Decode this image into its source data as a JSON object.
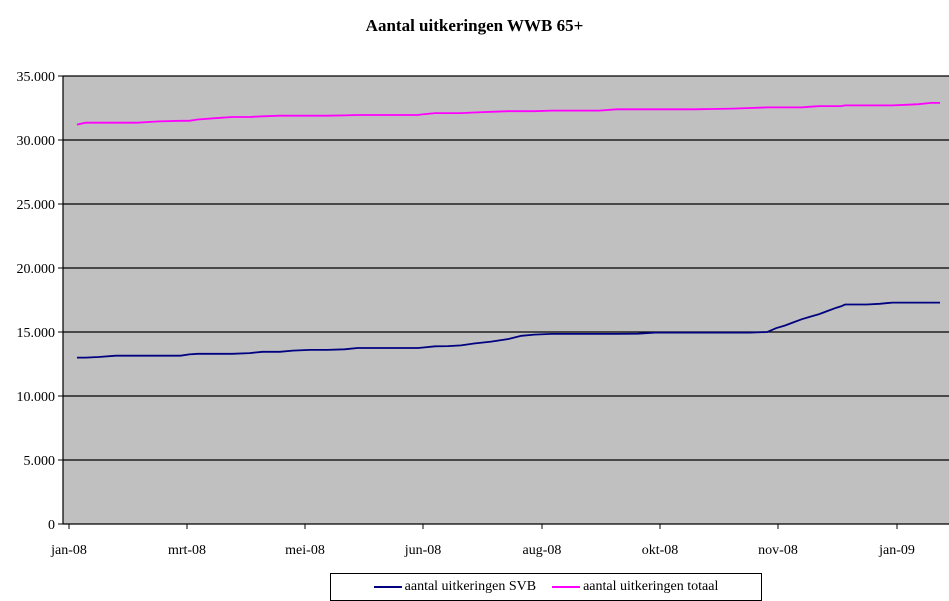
{
  "chart_data": {
    "type": "line",
    "title": "Aantal uitkeringen WWB 65+",
    "xlabel": "",
    "ylabel": "",
    "ylim": [
      0,
      35000
    ],
    "y_ticks": [
      "0",
      "5.000",
      "10.000",
      "15.000",
      "20.000",
      "25.000",
      "30.000",
      "35.000"
    ],
    "y_tick_values": [
      0,
      5000,
      10000,
      15000,
      20000,
      25000,
      30000,
      35000
    ],
    "x_tick_labels": [
      "jan-08",
      "mrt-08",
      "mei-08",
      "jun-08",
      "aug-08",
      "okt-08",
      "nov-08",
      "jan-09"
    ],
    "x": [
      0,
      2,
      5,
      9,
      14,
      19,
      24,
      26,
      28,
      32,
      36,
      40,
      43,
      47,
      50,
      54,
      58,
      62,
      65,
      69,
      72,
      76,
      79,
      80,
      83,
      86,
      89,
      92,
      96,
      100,
      103,
      106,
      110,
      113,
      117,
      121,
      125,
      130,
      134,
      138,
      143,
      147,
      152,
      156,
      160,
      162,
      164,
      166,
      168,
      170,
      172,
      174,
      176,
      177,
      178,
      179,
      180,
      183,
      186,
      189,
      192,
      195,
      198,
      200
    ],
    "series": [
      {
        "name": "aantal uitkeringen SVB",
        "color": "#000080",
        "values": [
          13000,
          13000,
          13050,
          13150,
          13150,
          13150,
          13150,
          13250,
          13300,
          13300,
          13300,
          13350,
          13450,
          13450,
          13550,
          13600,
          13600,
          13650,
          13750,
          13750,
          13750,
          13750,
          13750,
          13780,
          13880,
          13900,
          13950,
          14100,
          14250,
          14450,
          14700,
          14800,
          14850,
          14850,
          14850,
          14850,
          14850,
          14870,
          14950,
          14950,
          14950,
          14950,
          14950,
          14950,
          15000,
          15300,
          15500,
          15750,
          16000,
          16200,
          16400,
          16650,
          16900,
          17000,
          17150,
          17150,
          17150,
          17150,
          17200,
          17300,
          17300,
          17300,
          17300,
          17300
        ]
      },
      {
        "name": "aantal uitkeringen totaal",
        "color": "#ff00ff",
        "values": [
          31200,
          31350,
          31350,
          31350,
          31350,
          31450,
          31500,
          31500,
          31600,
          31700,
          31800,
          31800,
          31850,
          31900,
          31900,
          31900,
          31900,
          31920,
          31950,
          31950,
          31950,
          31950,
          31950,
          32000,
          32100,
          32100,
          32100,
          32150,
          32200,
          32250,
          32250,
          32250,
          32300,
          32300,
          32300,
          32300,
          32400,
          32400,
          32400,
          32400,
          32400,
          32420,
          32450,
          32500,
          32550,
          32550,
          32550,
          32550,
          32550,
          32600,
          32650,
          32650,
          32650,
          32650,
          32700,
          32700,
          32700,
          32700,
          32700,
          32700,
          32750,
          32800,
          32900,
          32900
        ]
      }
    ],
    "grid": true,
    "plot_background": "#c0c0c0",
    "legend_position": "bottom"
  }
}
